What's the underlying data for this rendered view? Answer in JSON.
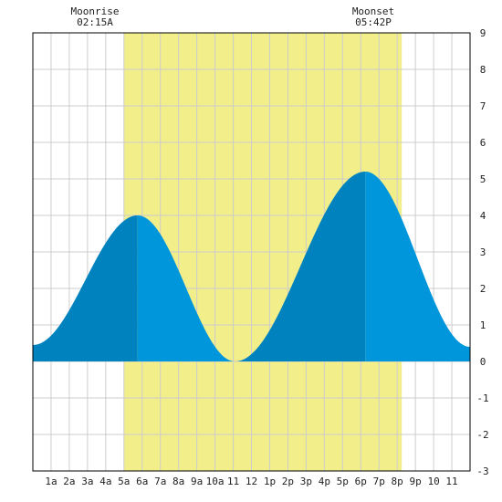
{
  "chart_data": {
    "type": "area",
    "title": "",
    "xlabel": "",
    "ylabel": "",
    "x_unit": "hour of day",
    "xlim": [
      0,
      24
    ],
    "ylim": [
      -3,
      9
    ],
    "y_ticks": [
      9,
      8,
      7,
      6,
      5,
      4,
      3,
      2,
      1,
      0,
      -1,
      -2,
      -3
    ],
    "x_ticks": [
      {
        "x": 1,
        "label": "1a"
      },
      {
        "x": 2,
        "label": "2a"
      },
      {
        "x": 3,
        "label": "3a"
      },
      {
        "x": 4,
        "label": "4a"
      },
      {
        "x": 5,
        "label": "5a"
      },
      {
        "x": 6,
        "label": "6a"
      },
      {
        "x": 7,
        "label": "7a"
      },
      {
        "x": 8,
        "label": "8a"
      },
      {
        "x": 9,
        "label": "9a"
      },
      {
        "x": 10,
        "label": "10a"
      },
      {
        "x": 11,
        "label": "11"
      },
      {
        "x": 12,
        "label": "12"
      },
      {
        "x": 13,
        "label": "1p"
      },
      {
        "x": 14,
        "label": "2p"
      },
      {
        "x": 15,
        "label": "3p"
      },
      {
        "x": 16,
        "label": "4p"
      },
      {
        "x": 17,
        "label": "5p"
      },
      {
        "x": 18,
        "label": "6p"
      },
      {
        "x": 19,
        "label": "7p"
      },
      {
        "x": 20,
        "label": "8p"
      },
      {
        "x": 21,
        "label": "9p"
      },
      {
        "x": 22,
        "label": "10"
      },
      {
        "x": 23,
        "label": "11"
      }
    ],
    "grid": true,
    "daylight": {
      "start": 5.0,
      "end": 20.25
    },
    "moon": [
      {
        "label": "Moonrise",
        "time": "02:15A"
      },
      {
        "label": "Moonset",
        "time": "05:42P"
      }
    ],
    "tide_extrema": [
      {
        "x": 0.0,
        "y": 0.45
      },
      {
        "x": 5.75,
        "y": 4.0
      },
      {
        "x": 11.1,
        "y": 0.0
      },
      {
        "x": 18.25,
        "y": 5.2
      },
      {
        "x": 24.0,
        "y": 0.4
      }
    ],
    "colors": {
      "daylight": "#f2ee8a",
      "tide_rising": "#0082bf",
      "tide_falling": "#0096dc",
      "grid": "#cccccc",
      "axis": "#000000"
    }
  }
}
